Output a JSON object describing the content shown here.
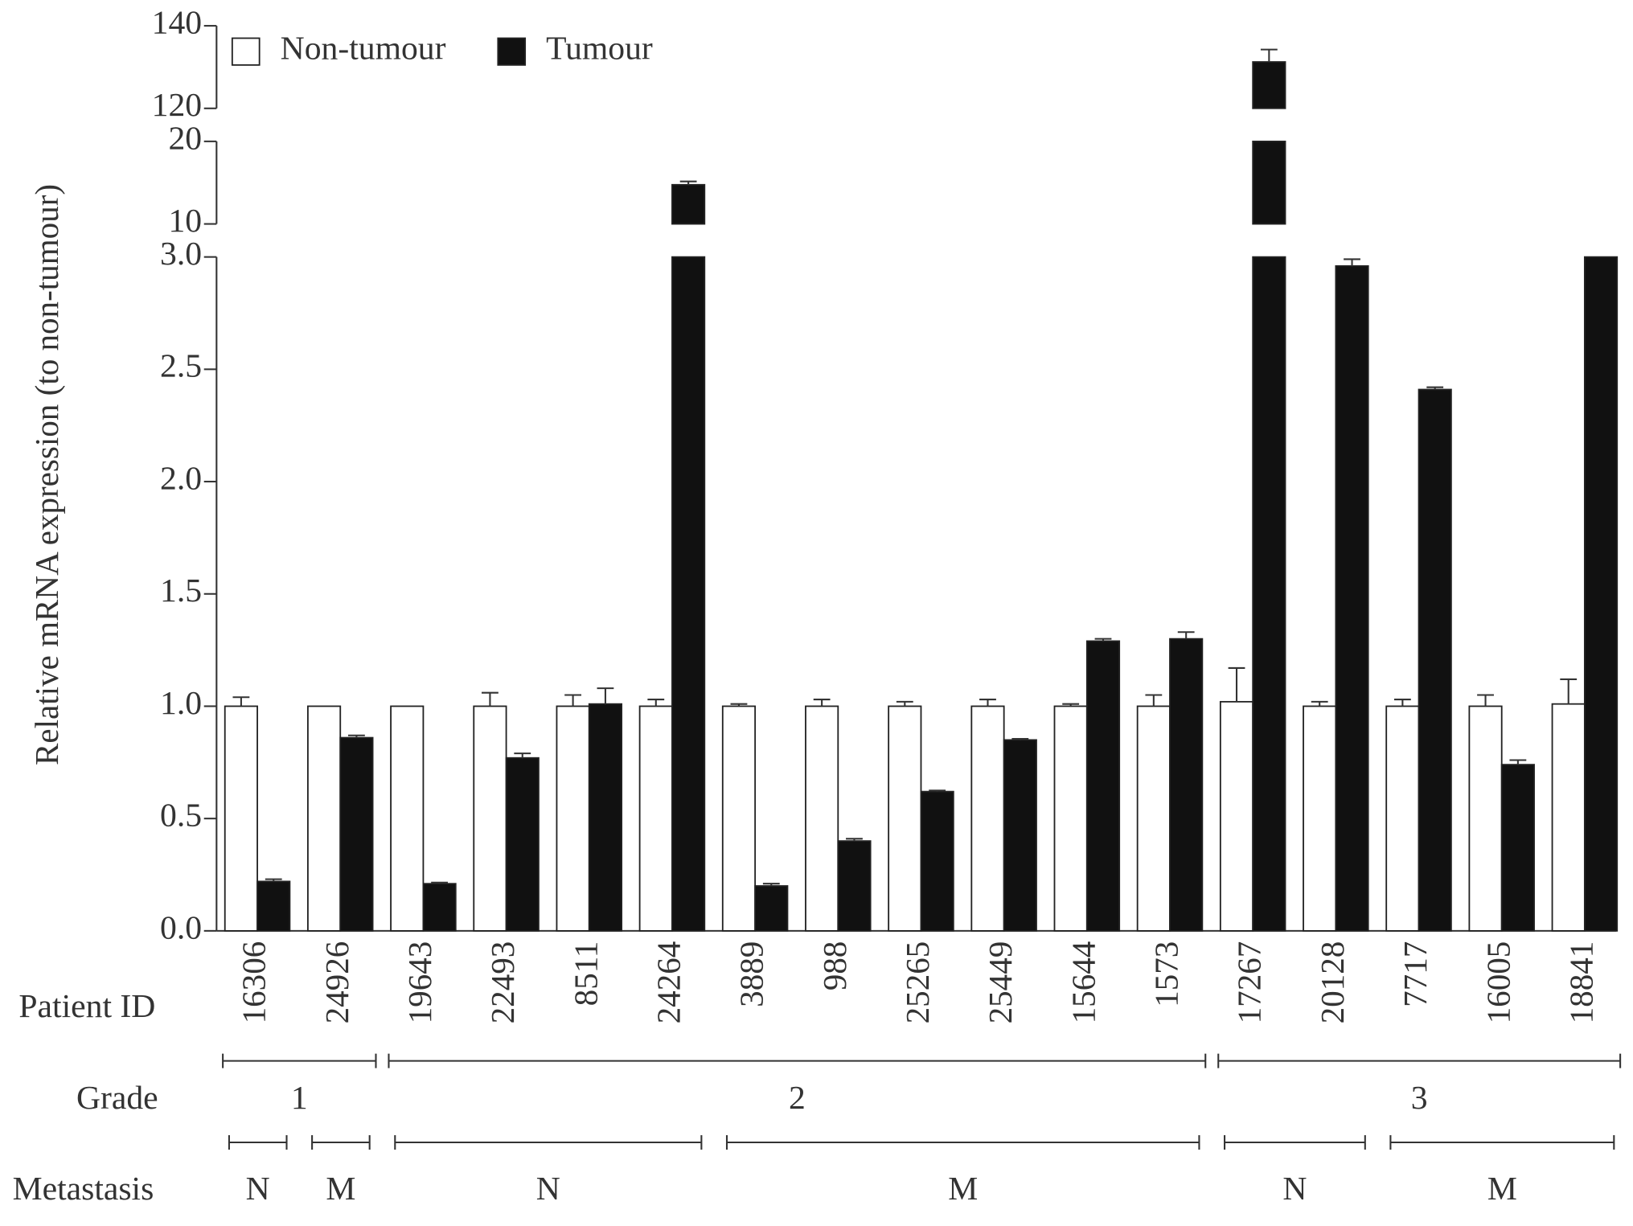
{
  "chart_data": {
    "type": "bar",
    "ylabel": "Relative mRNA expression (to non-tumour)",
    "categories_title": "Patient ID",
    "categories": [
      "16306",
      "24926",
      "19643",
      "22493",
      "8511",
      "24264",
      "3889",
      "988",
      "25265",
      "25449",
      "15644",
      "1573",
      "17267",
      "20128",
      "7717",
      "16005",
      "18841"
    ],
    "series": [
      {
        "name": "Non-tumour",
        "color": "#ffffff",
        "values": [
          1.0,
          1.0,
          1.0,
          1.0,
          1.0,
          1.0,
          1.0,
          1.0,
          1.0,
          1.0,
          1.0,
          1.0,
          1.02,
          1.0,
          1.0,
          1.0,
          1.01
        ],
        "errors": [
          0.04,
          0,
          0,
          0.06,
          0.05,
          0.03,
          0.01,
          0.03,
          0.02,
          0.03,
          0.01,
          0.05,
          0.15,
          0.02,
          0.03,
          0.05,
          0.11
        ]
      },
      {
        "name": "Tumour",
        "color": "#111111",
        "values": [
          0.22,
          0.86,
          0.21,
          0.77,
          1.01,
          14.75,
          0.2,
          0.4,
          0.62,
          0.85,
          1.29,
          1.3,
          131.25,
          2.96,
          2.41,
          0.74,
          3.0
        ],
        "errors": [
          0.01,
          0.01,
          0.005,
          0.02,
          0.07,
          0.4,
          0.01,
          0.01,
          0.005,
          0.005,
          0.01,
          0.03,
          3,
          0.03,
          0.01,
          0.02,
          0
        ]
      }
    ],
    "y_segments": [
      {
        "ylim": [
          0,
          3.0
        ],
        "yticks": [
          {
            "value": 0,
            "label": "0.0"
          },
          {
            "value": 0.5,
            "label": "0.5"
          },
          {
            "value": 1,
            "label": "1.0"
          },
          {
            "value": 1.5,
            "label": "1.5"
          },
          {
            "value": 2,
            "label": "2.0"
          },
          {
            "value": 2.5,
            "label": "2.5"
          },
          {
            "value": 3,
            "label": "3.0"
          }
        ]
      },
      {
        "ylim": [
          10,
          20
        ],
        "yticks": [
          10,
          20
        ]
      },
      {
        "ylim": [
          120,
          140
        ],
        "yticks": [
          120,
          140
        ]
      }
    ],
    "grade_title": "Grade",
    "grade": [
      "1",
      "1",
      "2",
      "2",
      "2",
      "2",
      "2",
      "2",
      "2",
      "2",
      "2",
      "2",
      "3",
      "3",
      "3",
      "3",
      "3"
    ],
    "metastasis_title": "Metastasis",
    "metastasis": [
      "N",
      "M",
      "N",
      "N",
      "N",
      "N",
      "M",
      "M",
      "M",
      "M",
      "M",
      "M",
      "N",
      "N",
      "M",
      "M",
      "M"
    ]
  }
}
